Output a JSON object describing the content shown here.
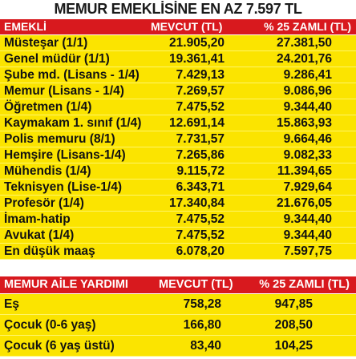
{
  "title": "MEMUR EMEKLİSİNE EN AZ 7.597 TL",
  "pension_table": {
    "headers": [
      "EMEKLİ",
      "MEVCUT (TL)",
      "% 25 ZAMLI (TL)"
    ],
    "rows": [
      [
        "Müsteşar (1/1)",
        "21.905,20",
        "27.381,50"
      ],
      [
        "Genel müdür (1/1)",
        "19.361,41",
        "24.201,76"
      ],
      [
        "Şube md. (Lisans - 1/4)",
        "7.429,13",
        "9.286,41"
      ],
      [
        "Memur (Lisans - 1/4)",
        "7.269,57",
        "9.086,96"
      ],
      [
        "Öğretmen (1/4)",
        "7.475,52",
        "9.344,40"
      ],
      [
        "Kaymakam 1. sınıf (1/4)",
        "12.691,14",
        "15.863,93"
      ],
      [
        "Polis memuru (8/1)",
        "7.731,57",
        "9.664,46"
      ],
      [
        "Hemşire (Lisans-1/4)",
        "7.265,86",
        "9.082,33"
      ],
      [
        "Mühendis (1/4)",
        "9.115,72",
        "11.394,65"
      ],
      [
        "Teknisyen (Lise-1/4)",
        "6.343,71",
        "7.929,64"
      ],
      [
        "Profesör (1/4)",
        "17.340,84",
        "21.676,05"
      ],
      [
        "İmam-hatip",
        "7.475,52",
        "9.344,40"
      ],
      [
        "Avukat (1/4)",
        "7.475,52",
        "9.344,40"
      ],
      [
        "En düşük maaş",
        "6.078,20",
        "7.597,75"
      ]
    ]
  },
  "family_table": {
    "headers": [
      "MEMUR AİLE YARDIMI",
      "MEVCUT (TL)",
      "% 25 ZAMLI (TL)"
    ],
    "rows": [
      [
        "Eş",
        "758,28",
        "947,85"
      ],
      [
        "Çocuk (0-6 yaş)",
        "166,80",
        "208,50"
      ],
      [
        "Çocuk (6 yaş üstü)",
        "83,40",
        "104,25"
      ]
    ]
  }
}
